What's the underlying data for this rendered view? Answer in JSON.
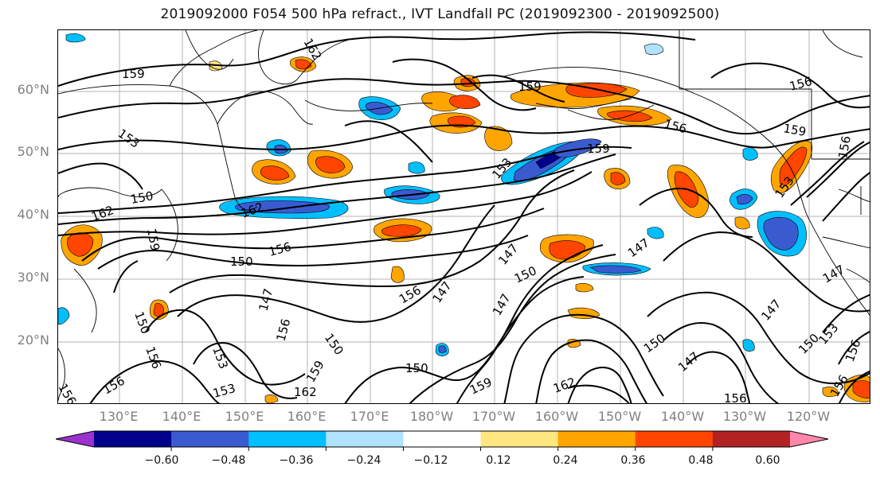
{
  "title": "2019092000 F054 500 hPa refract., IVT Landfall PC (2019092300 - 2019092500)",
  "lat_labels": [
    "60°N",
    "50°N",
    "40°N",
    "30°N",
    "20°N"
  ],
  "lon_labels": [
    "130°E",
    "140°E",
    "150°E",
    "160°E",
    "170°E",
    "180°W",
    "170°W",
    "160°W",
    "150°W",
    "140°W",
    "130°W",
    "120°W"
  ],
  "colorbar": {
    "colors": [
      "#9a32cd",
      "#00008b",
      "#3a5bd0",
      "#00bfff",
      "#b0e2ff",
      "#ffffff",
      "#ffe680",
      "#ffa500",
      "#ff4500",
      "#b22222",
      "#ff88aa"
    ],
    "tick_labels": [
      "−0.60",
      "−0.48",
      "−0.36",
      "−0.24",
      "−0.12",
      "0.12",
      "0.24",
      "0.36",
      "0.48",
      "0.60"
    ]
  },
  "contour_labels": [
    "162",
    "159",
    "159",
    "156",
    "159",
    "156",
    "153",
    "150",
    "153",
    "162",
    "159",
    "156",
    "150",
    "156",
    "147",
    "147",
    "150",
    "147",
    "156",
    "153",
    "147",
    "156",
    "150",
    "147",
    "150",
    "156",
    "150",
    "159",
    "162",
    "153",
    "162",
    "159",
    "150",
    "147",
    "150",
    "153",
    "156",
    "156",
    "156",
    "147",
    "156",
    "147",
    "159",
    "153",
    "162",
    "156"
  ]
}
